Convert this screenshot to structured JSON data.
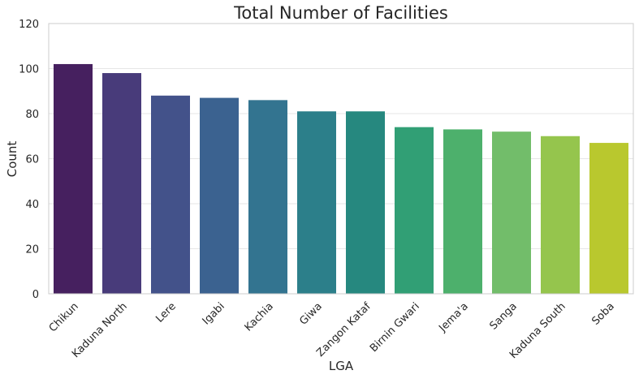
{
  "chart_data": {
    "type": "bar",
    "title": "Total Number of Facilities",
    "xlabel": "LGA",
    "ylabel": "Count",
    "categories": [
      "Chikun",
      "Kaduna North",
      "Lere",
      "Igabi",
      "Kachia",
      "Giwa",
      "Zangon Kataf",
      "Birnin Gwari",
      "Jema'a",
      "Sanga",
      "Kaduna South",
      "Soba"
    ],
    "values": [
      102,
      98,
      88,
      87,
      86,
      81,
      81,
      74,
      73,
      72,
      70,
      67
    ],
    "colors": [
      "#46205f",
      "#483b7a",
      "#43528a",
      "#3b6290",
      "#337490",
      "#2c7f8a",
      "#26887f",
      "#319f75",
      "#4db06c",
      "#72bd6a",
      "#95c54d",
      "#b9c82e"
    ],
    "ylim": [
      0,
      120
    ],
    "yticks": [
      0,
      20,
      40,
      60,
      80,
      100,
      120
    ],
    "grid": true,
    "grid_color": "#e6e6e6",
    "legend": "none"
  }
}
